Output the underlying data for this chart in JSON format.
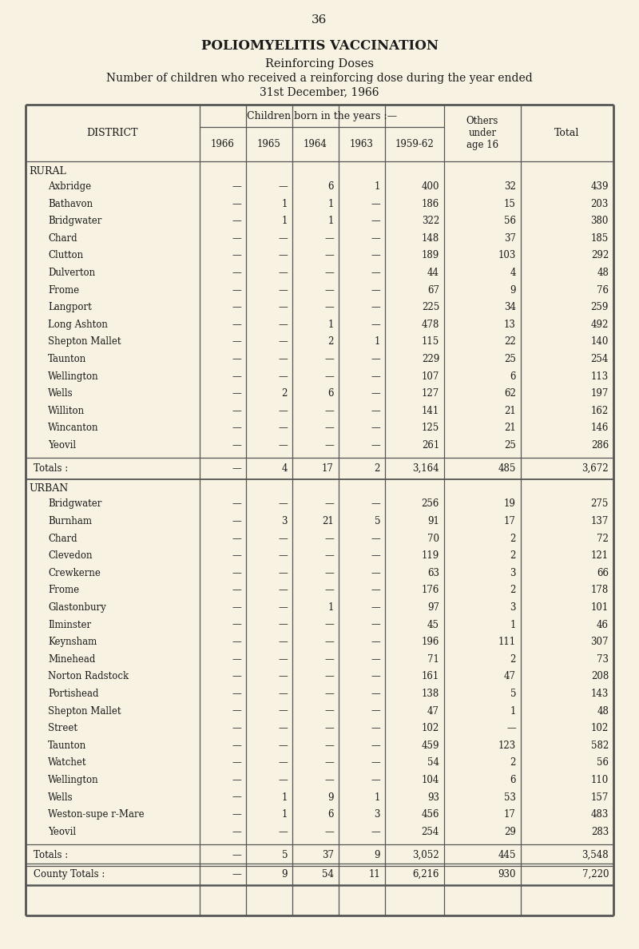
{
  "page_number": "36",
  "title1": "POLIOMYELITIS VACCINATION",
  "title2": "Reinforcing Doses",
  "title3": "Number of children who received a reinforcing dose during the year ended",
  "title4": "31st December, 1966",
  "bg_color": "#f7f2e2",
  "col_headers_span": "Children born in the years :—",
  "sub_headers": [
    "1966",
    "1965",
    "1964",
    "1963",
    "1959-62"
  ],
  "district_label": "DISTRICT",
  "rural_rows": [
    [
      "Axbridge",
      "—",
      "—",
      "6",
      "1",
      "400",
      "32",
      "439"
    ],
    [
      "Bathavon",
      "—",
      "1",
      "1",
      "—",
      "186",
      "15",
      "203"
    ],
    [
      "Bridgwater",
      "—",
      "1",
      "1",
      "—",
      "322",
      "56",
      "380"
    ],
    [
      "Chard",
      "—",
      "—",
      "—",
      "—",
      "148",
      "37",
      "185"
    ],
    [
      "Clutton",
      "—",
      "—",
      "—",
      "—",
      "189",
      "103",
      "292"
    ],
    [
      "Dulverton",
      "—",
      "—",
      "—",
      "—",
      "44",
      "4",
      "48"
    ],
    [
      "Frome",
      "—",
      "—",
      "—",
      "—",
      "67",
      "9",
      "76"
    ],
    [
      "Langport",
      "—",
      "—",
      "—",
      "—",
      "225",
      "34",
      "259"
    ],
    [
      "Long Ashton",
      "—",
      "—",
      "1",
      "—",
      "478",
      "13",
      "492"
    ],
    [
      "Shepton Mallet",
      "—",
      "—",
      "2",
      "1",
      "115",
      "22",
      "140"
    ],
    [
      "Taunton",
      "—",
      "—",
      "—",
      "—",
      "229",
      "25",
      "254"
    ],
    [
      "Wellington",
      "—",
      "—",
      "—",
      "—",
      "107",
      "6",
      "113"
    ],
    [
      "Wells",
      "—",
      "2",
      "6",
      "—",
      "127",
      "62",
      "197"
    ],
    [
      "Williton",
      "—",
      "—",
      "—",
      "—",
      "141",
      "21",
      "162"
    ],
    [
      "Wincanton",
      "—",
      "—",
      "—",
      "—",
      "125",
      "21",
      "146"
    ],
    [
      "Yeovil",
      "—",
      "—",
      "—",
      "—",
      "261",
      "25",
      "286"
    ]
  ],
  "rural_totals": [
    "Totals :",
    "—",
    "4",
    "17",
    "2",
    "3,164",
    "485",
    "3,672"
  ],
  "urban_rows": [
    [
      "Bridgwater",
      "—",
      "—",
      "—",
      "—",
      "256",
      "19",
      "275"
    ],
    [
      "Burnham",
      "—",
      "3",
      "21",
      "5",
      "91",
      "17",
      "137"
    ],
    [
      "Chard",
      "—",
      "—",
      "—",
      "—",
      "70",
      "2",
      "72"
    ],
    [
      "Clevedon",
      "—",
      "—",
      "—",
      "—",
      "119",
      "2",
      "121"
    ],
    [
      "Crewkerne",
      "—",
      "—",
      "—",
      "—",
      "63",
      "3",
      "66"
    ],
    [
      "Frome",
      "—",
      "—",
      "—",
      "—",
      "176",
      "2",
      "178"
    ],
    [
      "Glastonbury",
      "—",
      "—",
      "1",
      "—",
      "97",
      "3",
      "101"
    ],
    [
      "Ilminster",
      "—",
      "—",
      "—",
      "—",
      "45",
      "1",
      "46"
    ],
    [
      "Keynsham",
      "—",
      "—",
      "—",
      "—",
      "196",
      "111",
      "307"
    ],
    [
      "Minehead",
      "—",
      "—",
      "—",
      "—",
      "71",
      "2",
      "73"
    ],
    [
      "Norton Radstock",
      "—",
      "—",
      "—",
      "—",
      "161",
      "47",
      "208"
    ],
    [
      "Portishead",
      "—",
      "—",
      "—",
      "—",
      "138",
      "5",
      "143"
    ],
    [
      "Shepton Mallet",
      "—",
      "—",
      "—",
      "—",
      "47",
      "1",
      "48"
    ],
    [
      "Street",
      "—",
      "—",
      "—",
      "—",
      "102",
      "—",
      "102"
    ],
    [
      "Taunton",
      "—",
      "—",
      "—",
      "—",
      "459",
      "123",
      "582"
    ],
    [
      "Watchet",
      "—",
      "—",
      "—",
      "—",
      "54",
      "2",
      "56"
    ],
    [
      "Wellington",
      "—",
      "—",
      "—",
      "—",
      "104",
      "6",
      "110"
    ],
    [
      "Wells",
      "—",
      "1",
      "9",
      "1",
      "93",
      "53",
      "157"
    ],
    [
      "Weston-supe r-Mare",
      "—",
      "1",
      "6",
      "3",
      "456",
      "17",
      "483"
    ],
    [
      "Yeovil",
      "—",
      "—",
      "—",
      "—",
      "254",
      "29",
      "283"
    ]
  ],
  "urban_totals": [
    "Totals :",
    "—",
    "5",
    "37",
    "9",
    "3,052",
    "445",
    "3,548"
  ],
  "county_totals": [
    "County Totals :",
    "—",
    "9",
    "54",
    "11",
    "6,216",
    "930",
    "7,220"
  ]
}
